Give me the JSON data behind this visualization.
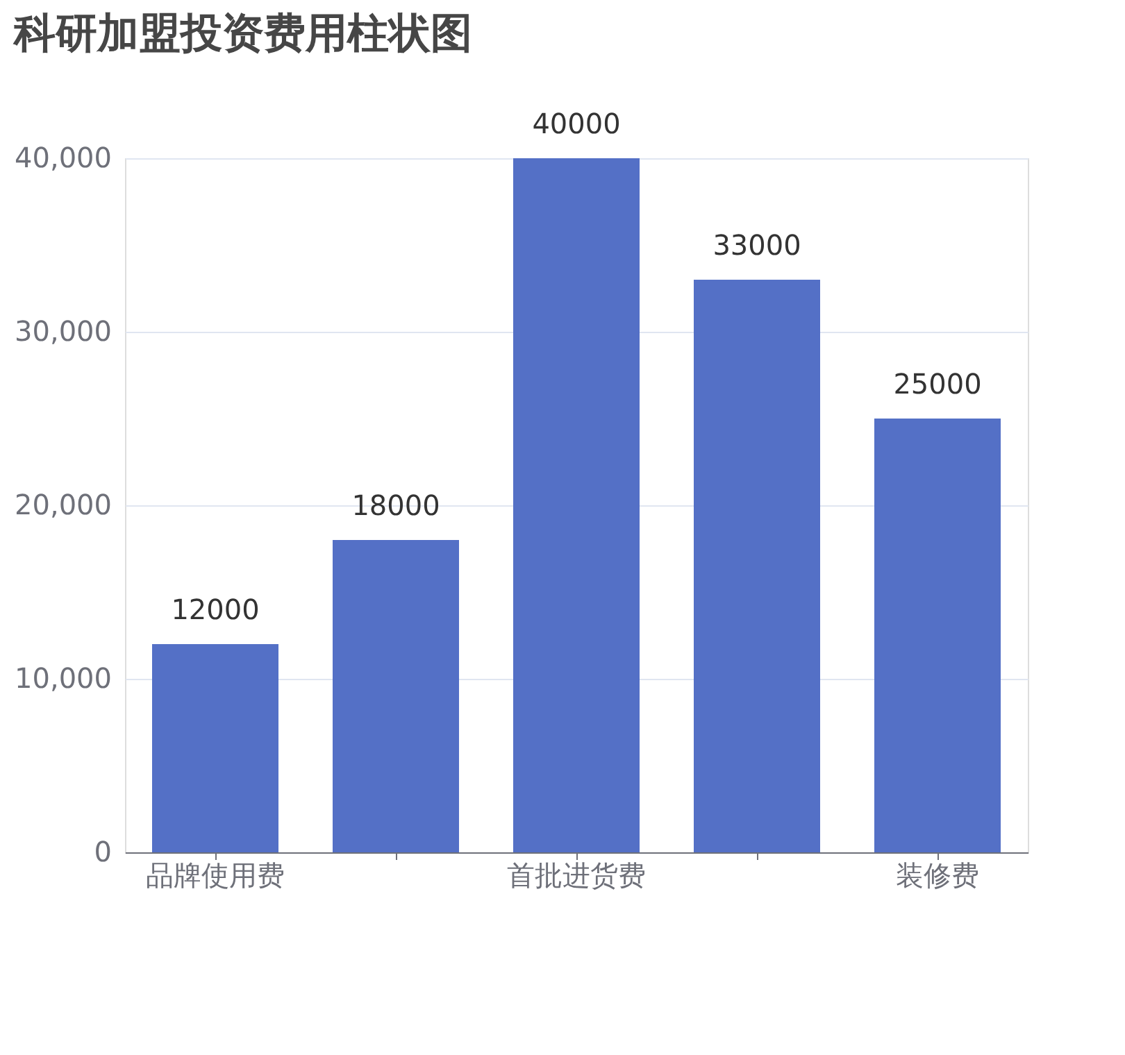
{
  "chart_data": {
    "type": "bar",
    "title": "科研加盟投资费用柱状图",
    "categories": [
      "品牌使用费",
      null,
      "首批进货费",
      null,
      "装修费"
    ],
    "values": [
      12000,
      18000,
      40000,
      33000,
      25000
    ],
    "color": "#5470c6",
    "ylim": [
      0,
      40000
    ],
    "yticks": [
      0,
      {
        "value": 10000,
        "label": "10,000"
      },
      {
        "value": 20000,
        "label": "20,000"
      },
      {
        "value": 30000,
        "label": "30,000"
      },
      {
        "value": 40000,
        "label": "40,000"
      }
    ],
    "grid": "y",
    "data_labels": true
  }
}
